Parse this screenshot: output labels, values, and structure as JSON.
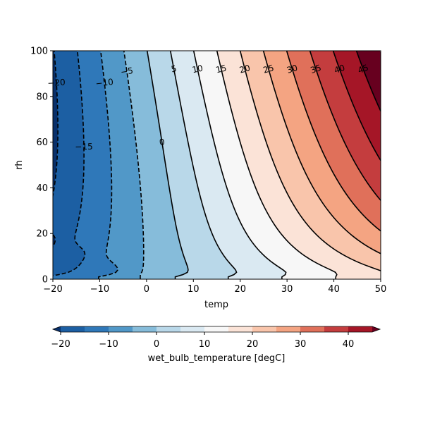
{
  "chart_data": {
    "type": "contour",
    "xlabel": "temp",
    "ylabel": "rh",
    "xlim": [
      -20,
      50
    ],
    "ylim": [
      0,
      100
    ],
    "xticks": [
      -20,
      -10,
      0,
      10,
      20,
      30,
      40,
      50
    ],
    "yticks": [
      0,
      20,
      40,
      60,
      80,
      100
    ],
    "variable": "wet_bulb_temperature",
    "colorbar_label": "wet_bulb_temperature [degC]",
    "colorbar_ticks": [
      -20,
      -10,
      0,
      10,
      20,
      30,
      40
    ],
    "colorbar_extend": "both",
    "colormap": "RdBu_r",
    "fill_levels": [
      -25,
      -20,
      -15,
      -10,
      -5,
      0,
      5,
      10,
      15,
      20,
      25,
      30,
      35,
      40,
      45,
      50
    ],
    "contour_levels": [
      -20,
      -15,
      -10,
      -5,
      0,
      5,
      10,
      15,
      20,
      25,
      30,
      35,
      40,
      45
    ],
    "contour_labels": [
      "-20",
      "-15",
      "-10",
      "-5",
      "0",
      "5",
      "10",
      "15",
      "20",
      "25",
      "30",
      "35",
      "40",
      "45"
    ],
    "negative_linestyle": "dashed",
    "colors": [
      "#08306b",
      "#1c5fa3",
      "#2f78b9",
      "#5198c8",
      "#86bcda",
      "#b9d8e9",
      "#dae9f2",
      "#f7f7f7",
      "#fbe3d7",
      "#f9c5ab",
      "#f4a482",
      "#e0705a",
      "#c43d3e",
      "#a51627",
      "#67001f"
    ]
  }
}
